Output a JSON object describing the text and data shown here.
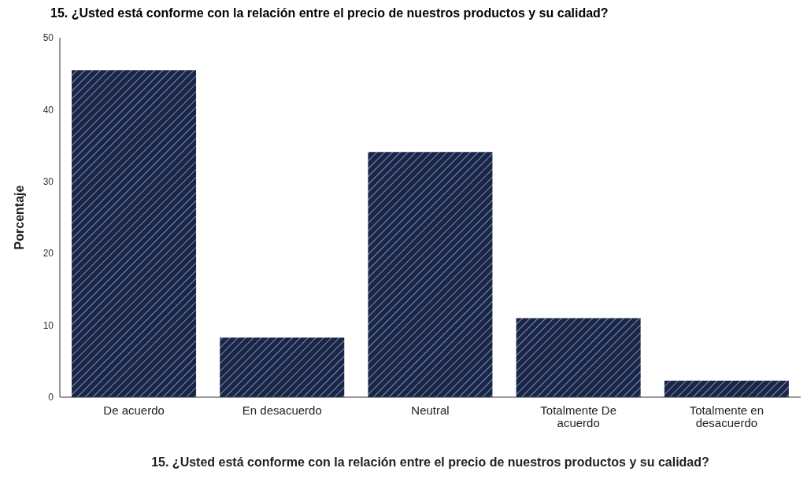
{
  "chart_data": {
    "type": "bar",
    "title": "15. ¿Usted está conforme con la relación entre el precio de nuestros productos y su calidad?",
    "xlabel": "15. ¿Usted está conforme con la relación entre el precio de nuestros productos y su calidad?",
    "ylabel": "Porcentaje",
    "categories": [
      "De acuerdo",
      "En desacuerdo",
      "Neutral",
      "Totalmente De acuerdo",
      "Totalmente en desacuerdo"
    ],
    "values": [
      45.5,
      8.3,
      34.1,
      11.0,
      2.3
    ],
    "color": "#1c2541",
    "ylim": [
      0,
      50
    ],
    "yticks": [
      0,
      10,
      20,
      30,
      40,
      50
    ],
    "grid": false,
    "legend": false
  }
}
